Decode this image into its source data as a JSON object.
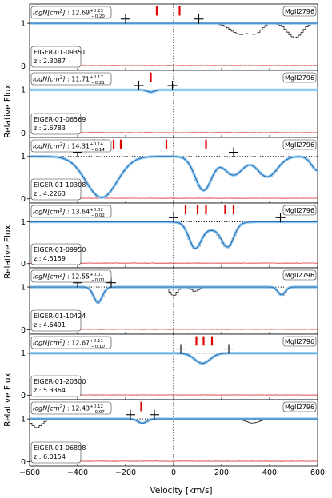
{
  "chart_data": {
    "type": "line",
    "xlabel": "Velocity [km/s]",
    "ylabel": "Relative Flux",
    "xlim": [
      -600,
      600
    ],
    "ylim": [
      -0.1,
      1.45
    ],
    "x_ticks": [
      -600,
      -400,
      -200,
      0,
      200,
      400,
      600
    ],
    "y_ticks": [
      0,
      1
    ],
    "zero_velocity_marker": "dotted vertical line",
    "continuum_marker": "dotted horizontal line at 1",
    "series_styles": {
      "data": "black step line",
      "model": "light blue band with dark blue line",
      "error": "red line",
      "components": "red vertical ticks",
      "velocity_window": "black crosses"
    },
    "panels": [
      {
        "object": "EIGER-01-09351",
        "z": "2.3087",
        "transition": "MgII2796",
        "coldens_value": "12.69",
        "coldens_up": "+0.23",
        "coldens_low": "−0.20",
        "components": [
          -70,
          25
        ],
        "window": [
          -200,
          105
        ],
        "absorptions": [
          {
            "v": 280,
            "width": 40,
            "depth": 0.26
          },
          {
            "v": 345,
            "width": 22,
            "depth": 0.2
          },
          {
            "v": 505,
            "width": 30,
            "depth": 0.34
          }
        ],
        "model_absorptions": []
      },
      {
        "object": "EIGER-01-06569",
        "z": "2.6783",
        "transition": "MgII2796",
        "coldens_value": "11.71",
        "coldens_up": "+0.17",
        "coldens_low": "−0.21",
        "components": [
          -95
        ],
        "window": [
          -145,
          -5
        ],
        "absorptions": [
          {
            "v": -95,
            "width": 15,
            "depth": 0.06
          }
        ],
        "model_absorptions": [
          {
            "v": -95,
            "width": 15,
            "depth": 0.05
          }
        ]
      },
      {
        "object": "EIGER-01-10308",
        "z": "4.2263",
        "transition": "MgII2796",
        "coldens_value": "14.31",
        "coldens_up": "+0.14",
        "coldens_low": "−0.14",
        "components": [
          -330,
          -290,
          -250,
          -220,
          -30,
          135
        ],
        "window": [
          -400,
          250
        ],
        "absorptions": [
          {
            "v": -300,
            "width": 65,
            "depth": 0.98
          },
          {
            "v": 125,
            "width": 35,
            "depth": 0.82
          },
          {
            "v": 250,
            "width": 40,
            "depth": 0.45
          },
          {
            "v": 390,
            "width": 42,
            "depth": 0.5
          },
          {
            "v": 600,
            "width": 25,
            "depth": 0.35
          }
        ],
        "model_absorptions": [
          {
            "v": -300,
            "width": 65,
            "depth": 0.97
          },
          {
            "v": 125,
            "width": 35,
            "depth": 0.8
          },
          {
            "v": 250,
            "width": 40,
            "depth": 0.44
          },
          {
            "v": 390,
            "width": 42,
            "depth": 0.48
          },
          {
            "v": 600,
            "width": 25,
            "depth": 0.33
          }
        ]
      },
      {
        "object": "EIGER-01-09950",
        "z": "4.5159",
        "transition": "MgII2796",
        "coldens_value": "13.64",
        "coldens_up": "+0.02",
        "coldens_low": "−0.02",
        "components": [
          50,
          100,
          135,
          215,
          250
        ],
        "window": [
          0,
          445
        ],
        "absorptions": [
          {
            "v": 90,
            "width": 25,
            "depth": 0.62
          },
          {
            "v": 225,
            "width": 25,
            "depth": 0.58
          },
          {
            "v": 160,
            "width": 60,
            "depth": 0.2
          }
        ],
        "model_absorptions": [
          {
            "v": 90,
            "width": 25,
            "depth": 0.6
          },
          {
            "v": 225,
            "width": 25,
            "depth": 0.56
          },
          {
            "v": 160,
            "width": 60,
            "depth": 0.18
          }
        ]
      },
      {
        "object": "EIGER-01-10424",
        "z": "4.6491",
        "transition": "MgII2796",
        "coldens_value": "12.55",
        "coldens_up": "+0.01",
        "coldens_low": "−0.01",
        "components": [
          -310
        ],
        "window": [
          -400,
          -260
        ],
        "absorptions": [
          {
            "v": -315,
            "width": 18,
            "depth": 0.38
          },
          {
            "v": 0,
            "width": 15,
            "depth": 0.2
          },
          {
            "v": 90,
            "width": 15,
            "depth": 0.1
          },
          {
            "v": 450,
            "width": 15,
            "depth": 0.2
          }
        ],
        "model_absorptions": [
          {
            "v": -315,
            "width": 18,
            "depth": 0.36
          },
          {
            "v": 450,
            "width": 15,
            "depth": 0.18
          }
        ]
      },
      {
        "object": "EIGER-01-20300",
        "z": "5.3364",
        "transition": "MgII2796",
        "coldens_value": "12.67",
        "coldens_up": "+0.11",
        "coldens_low": "−0.10",
        "components": [
          95,
          125,
          160
        ],
        "window": [
          30,
          230
        ],
        "absorptions": [
          {
            "v": 120,
            "width": 32,
            "depth": 0.25
          }
        ],
        "model_absorptions": [
          {
            "v": 120,
            "width": 32,
            "depth": 0.24
          }
        ]
      },
      {
        "object": "EIGER-01-06898",
        "z": "6.0154",
        "transition": "MgII2796",
        "coldens_value": "12.43",
        "coldens_up": "+0.12",
        "coldens_low": "−0.07",
        "components": [
          -135
        ],
        "window": [
          -180,
          -80
        ],
        "absorptions": [
          {
            "v": -130,
            "width": 18,
            "depth": 0.12
          },
          {
            "v": -570,
            "width": 22,
            "depth": 0.2
          },
          {
            "v": 330,
            "width": 25,
            "depth": 0.1
          }
        ],
        "model_absorptions": [
          {
            "v": -130,
            "width": 18,
            "depth": 0.1
          }
        ]
      }
    ]
  }
}
